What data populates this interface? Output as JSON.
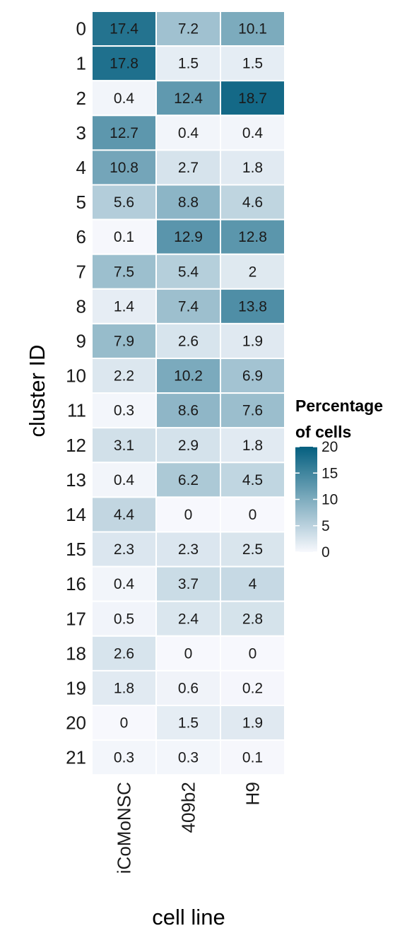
{
  "chart_data": {
    "type": "heatmap",
    "x_categories": [
      "iCoMoNSC",
      "409b2",
      "H9"
    ],
    "y_categories": [
      "0",
      "1",
      "2",
      "3",
      "4",
      "5",
      "6",
      "7",
      "8",
      "9",
      "10",
      "11",
      "12",
      "13",
      "14",
      "15",
      "16",
      "17",
      "18",
      "19",
      "20",
      "21"
    ],
    "values": [
      [
        17.4,
        7.2,
        10.1
      ],
      [
        17.8,
        1.5,
        1.5
      ],
      [
        0.4,
        12.4,
        18.7
      ],
      [
        12.7,
        0.4,
        0.4
      ],
      [
        10.8,
        2.7,
        1.8
      ],
      [
        5.6,
        8.8,
        4.6
      ],
      [
        0.1,
        12.9,
        12.8
      ],
      [
        7.5,
        5.4,
        2
      ],
      [
        1.4,
        7.4,
        13.8
      ],
      [
        7.9,
        2.6,
        1.9
      ],
      [
        2.2,
        10.2,
        6.9
      ],
      [
        0.3,
        8.6,
        7.6
      ],
      [
        3.1,
        2.9,
        1.8
      ],
      [
        0.4,
        6.2,
        4.5
      ],
      [
        4.4,
        0,
        0
      ],
      [
        2.3,
        2.3,
        2.5
      ],
      [
        0.4,
        3.7,
        4
      ],
      [
        0.5,
        2.4,
        2.8
      ],
      [
        2.6,
        0,
        0
      ],
      [
        1.8,
        0.6,
        0.2
      ],
      [
        0,
        1.5,
        1.9
      ],
      [
        0.3,
        0.3,
        0.1
      ]
    ],
    "xlabel": "cell line",
    "ylabel": "cluster ID",
    "legend": {
      "title_lines": [
        "Percentage",
        "of cells"
      ],
      "ticks": [
        0,
        5,
        10,
        15,
        20
      ],
      "range": [
        0,
        20
      ],
      "placement": "right"
    },
    "colors": {
      "low": "#f7f8fd",
      "high": "#045f7f"
    }
  }
}
